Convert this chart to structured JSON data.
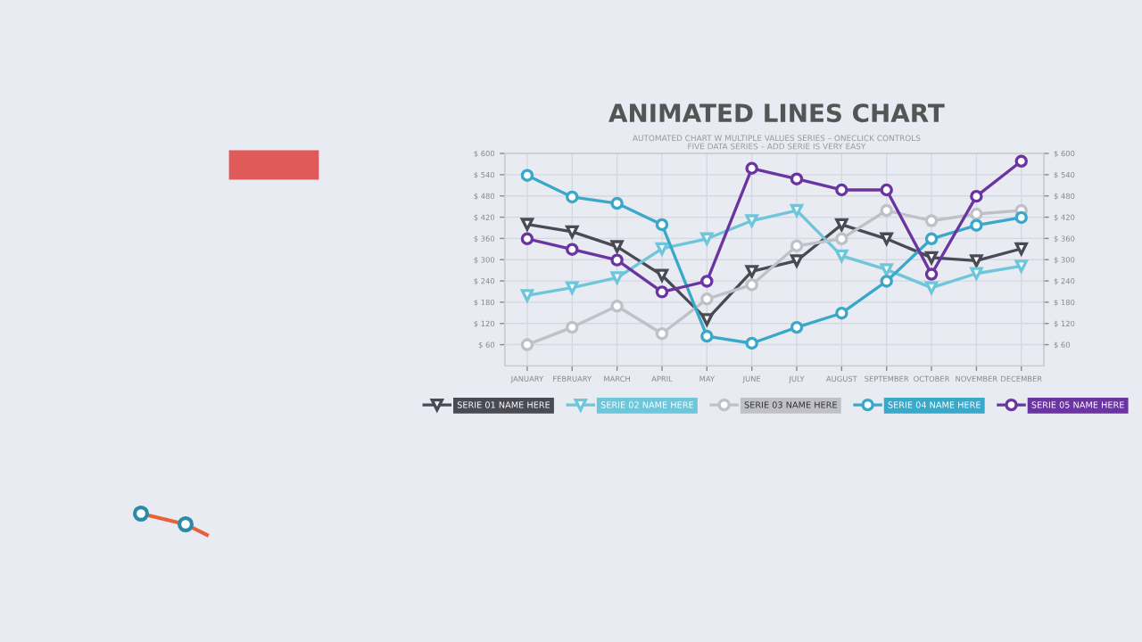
{
  "chart_data": {
    "type": "line",
    "title": "ANIMATED LINES CHART",
    "subtitle": "AUTOMATED CHART W MULTIPLE VALUES SERIES – ONECLICK CONTROLS\nFIVE DATA SERIES – ADD SERIE IS VERY EASY",
    "categories": [
      "JANUARY",
      "FEBRUARY",
      "MARCH",
      "APRIL",
      "MAY",
      "JUNE",
      "JULY",
      "AUGUST",
      "SEPTEMBER",
      "OCTOBER",
      "NOVEMBER",
      "DECEMBER"
    ],
    "series": [
      {
        "name": "SERIE 01 NAME HERE",
        "color": "#4a4a55",
        "marker": "triangle",
        "values": [
          400,
          379,
          337,
          256,
          131,
          267,
          297,
          399,
          359,
          306,
          297,
          331
        ]
      },
      {
        "name": "SERIE 02 NAME HERE",
        "color": "#6ec6da",
        "marker": "triangle",
        "values": [
          199,
          221,
          249,
          331,
          359,
          410,
          439,
          311,
          272,
          221,
          261,
          282
        ]
      },
      {
        "name": "SERIE 03 NAME HERE",
        "color": "#c0c0c8",
        "marker": "circle",
        "values": [
          60,
          109,
          169,
          91,
          189,
          229,
          339,
          359,
          439,
          410,
          429,
          439
        ]
      },
      {
        "name": "SERIE 04 NAME HERE",
        "color": "#3aa8c8",
        "marker": "circle",
        "values": [
          538,
          477,
          459,
          399,
          84,
          64,
          109,
          149,
          239,
          359,
          397,
          419
        ]
      },
      {
        "name": "SERIE 05 NAME HERE",
        "color": "#6a35a0",
        "marker": "circle",
        "values": [
          359,
          329,
          299,
          209,
          239,
          558,
          528,
          497,
          497,
          259,
          479,
          578
        ]
      }
    ],
    "ylim": [
      0,
      600
    ],
    "yticks": [
      {
        "value": 60,
        "label": "$ 60"
      },
      {
        "value": 120,
        "label": "$ 120"
      },
      {
        "value": 180,
        "label": "$ 180"
      },
      {
        "value": 240,
        "label": "$ 240"
      },
      {
        "value": 300,
        "label": "$ 300"
      },
      {
        "value": 360,
        "label": "$ 360"
      },
      {
        "value": 420,
        "label": "$ 420"
      },
      {
        "value": 480,
        "label": "$ 480"
      },
      {
        "value": 540,
        "label": "$ 540"
      },
      {
        "value": 600,
        "label": "$ 600"
      }
    ],
    "y2lim": [
      0,
      600
    ],
    "y2ticks": [
      {
        "value": 60,
        "label": "$ 60"
      },
      {
        "value": 120,
        "label": "$ 120"
      },
      {
        "value": 180,
        "label": "$ 180"
      },
      {
        "value": 240,
        "label": "$ 240"
      },
      {
        "value": 300,
        "label": "$ 300"
      },
      {
        "value": 360,
        "label": "$ 360"
      },
      {
        "value": 420,
        "label": "$ 420"
      },
      {
        "value": 480,
        "label": "$ 480"
      },
      {
        "value": 540,
        "label": "$ 540"
      },
      {
        "value": 600,
        "label": "$ 600"
      }
    ],
    "grid": true,
    "legend": "bottom",
    "line_style": "solid"
  }
}
